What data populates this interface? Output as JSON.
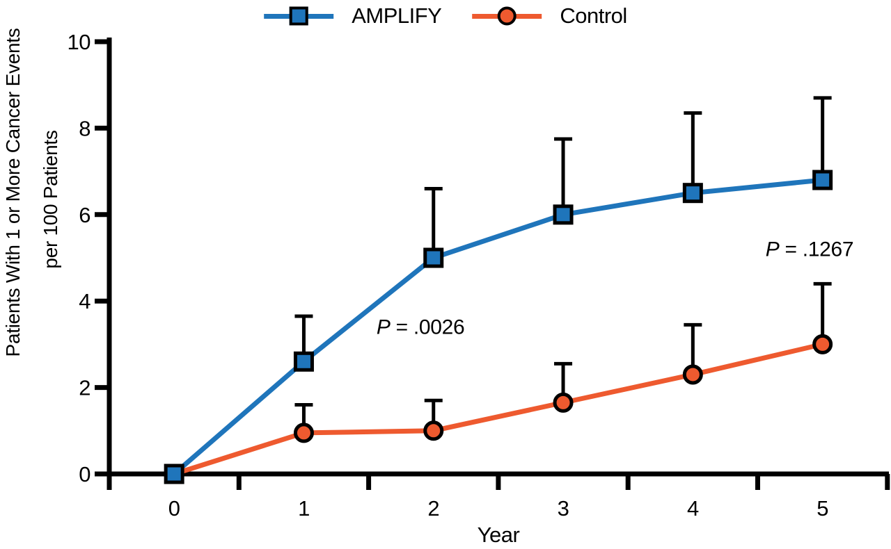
{
  "legend": {
    "series": [
      {
        "label": "AMPLIFY",
        "color": "#1F75BB",
        "marker": "square"
      },
      {
        "label": "Control",
        "color": "#EE5A2F",
        "marker": "circle"
      }
    ]
  },
  "axes": {
    "y_label_line1": "Patients With 1 or More Cancer Events",
    "y_label_line2": "per 100 Patients",
    "x_label": "Year"
  },
  "chart_data": {
    "type": "line",
    "title": "",
    "xlabel": "Year",
    "ylabel": "Patients With 1 or More Cancer Events per 100 Patients",
    "x": [
      0,
      1,
      2,
      3,
      4,
      5
    ],
    "x_ticks": [
      0,
      1,
      2,
      3,
      4,
      5
    ],
    "y_ticks": [
      0,
      2,
      4,
      6,
      8,
      10
    ],
    "xlim": [
      -0.5,
      5.5
    ],
    "ylim": [
      0,
      10
    ],
    "grid": false,
    "legend_position": "top",
    "error_bars": "upper-only",
    "series": [
      {
        "name": "Control",
        "color": "#EE5A2F",
        "marker": "circle",
        "values": [
          0,
          0.95,
          1.0,
          1.65,
          2.3,
          3.0
        ],
        "error_upper": [
          null,
          1.6,
          1.7,
          2.55,
          3.45,
          4.4
        ]
      },
      {
        "name": "AMPLIFY",
        "color": "#1F75BB",
        "marker": "square",
        "values": [
          0,
          2.6,
          5.0,
          6.0,
          6.5,
          6.8
        ],
        "error_upper": [
          null,
          3.65,
          6.6,
          7.75,
          8.35,
          8.7
        ]
      }
    ],
    "annotations": [
      {
        "italic_prefix": "P",
        "text": " = .0026",
        "x": 1.9,
        "y": 3.4
      },
      {
        "italic_prefix": "P",
        "text": " = .1267",
        "x": 4.9,
        "y": 5.2
      }
    ]
  }
}
